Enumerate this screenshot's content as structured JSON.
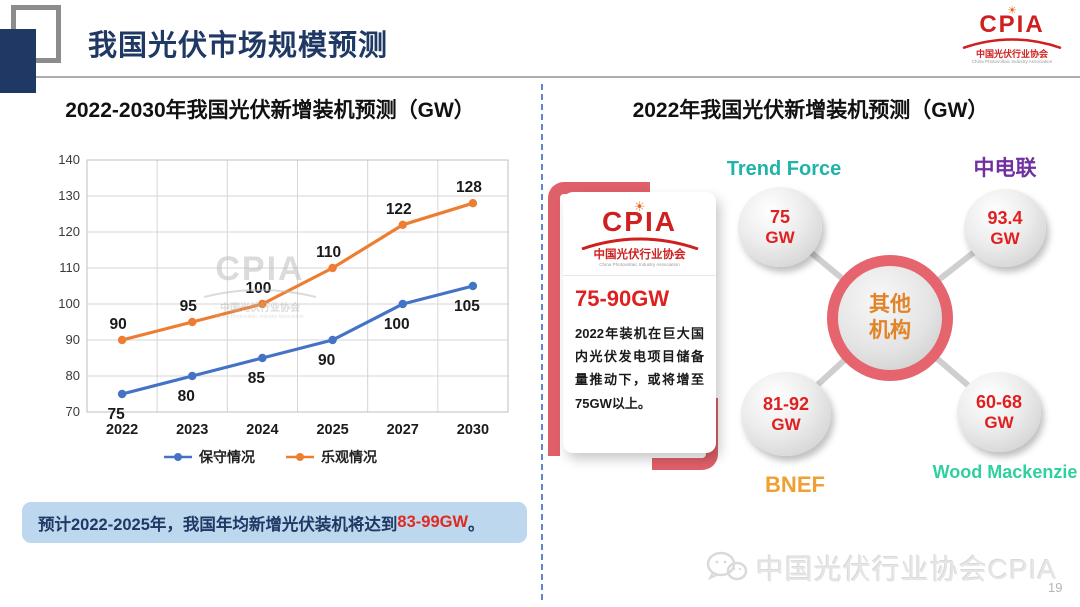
{
  "header": {
    "title": "我国光伏市场规模预测"
  },
  "logo": {
    "sun_icon": "sun-burst-icon",
    "word": "CPIA",
    "org_cn": "中国光伏行业协会",
    "org_en": "China Photovoltaic Industry Association"
  },
  "left_panel": {
    "title": "2022-2030年我国光伏新增装机预测（GW）",
    "watermark": {
      "word": "CPIA",
      "org_cn": "中国光伏行业协会",
      "org_en": "China Photovoltaic Industry Association"
    },
    "note": {
      "prefix": "预计2022-2025年，我国年均新增光伏装机将达到",
      "highlight": "83-99GW",
      "suffix": "。"
    }
  },
  "chart_data": {
    "type": "line",
    "title": "2022-2030年我国光伏新增装机预测（GW）",
    "categories": [
      "2022",
      "2023",
      "2024",
      "2025",
      "2027",
      "2030"
    ],
    "series": [
      {
        "name": "保守情况",
        "color": "#4472c4",
        "values": [
          75,
          80,
          85,
          90,
          100,
          105
        ],
        "label_position": "below"
      },
      {
        "name": "乐观情况",
        "color": "#ed7d31",
        "values": [
          90,
          95,
          100,
          110,
          122,
          128
        ],
        "label_position": "above"
      }
    ],
    "ylim": [
      70,
      140
    ],
    "ytick_step": 10,
    "grid": true,
    "legend_position": "bottom",
    "grid_color": "#d6d6d6",
    "label_color": "#1a1a1a"
  },
  "right_panel": {
    "title": "2022年我国光伏新增装机预测（GW）",
    "card": {
      "range": "75-90GW",
      "body": "2022年装机在巨大国内光伏发电项目储备量推动下，或将增至75GW以上。"
    },
    "center_label_line1": "其他",
    "center_label_line2": "机构",
    "orgs": [
      {
        "name": "Trend Force",
        "value": "75",
        "unit": "GW",
        "name_color": "#1fb3aa"
      },
      {
        "name": "中电联",
        "value": "93.4",
        "unit": "GW",
        "name_color": "#7030a0"
      },
      {
        "name": "BNEF",
        "value": "81-92",
        "unit": "GW",
        "name_color": "#f0a032"
      },
      {
        "name": "Wood Mackenzie",
        "value": "60-68",
        "unit": "GW",
        "name_color": "#2fcf9f"
      }
    ]
  },
  "footer": {
    "watermark": "中国光伏行业协会CPIA",
    "page_number": "19"
  }
}
